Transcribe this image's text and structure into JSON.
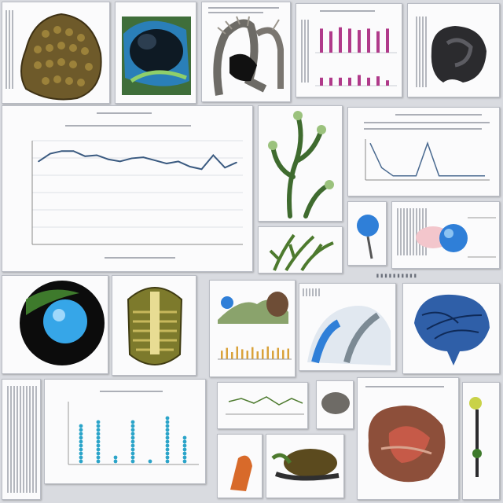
{
  "collage": {
    "background": "#d9dbe0",
    "accent_blue": "#2f7fd8",
    "accent_green": "#4d7a2e",
    "accent_magenta": "#b03a8a"
  },
  "line_chart": {
    "type": "line",
    "x": [
      1,
      2,
      3,
      4,
      5,
      6,
      7,
      8,
      9,
      10,
      11,
      12,
      13,
      14,
      15,
      16,
      17,
      18
    ],
    "values": [
      1.6,
      1.75,
      1.8,
      1.8,
      1.7,
      1.72,
      1.64,
      1.6,
      1.66,
      1.68,
      1.62,
      1.56,
      1.6,
      1.5,
      1.45,
      1.72,
      1.48,
      1.58
    ],
    "ylim": [
      0,
      2
    ],
    "grid": true
  },
  "bar_chart_small": {
    "type": "bar",
    "values": [
      0.9,
      0.3,
      0.8,
      0.3,
      0.95,
      0.3,
      0.9,
      0.3,
      0.85,
      0.4,
      0.9,
      0.3,
      0.8,
      0.35,
      0.9,
      0.2
    ]
  },
  "spike_chart": {
    "type": "line",
    "values": [
      0.9,
      0.3,
      0.1,
      0.1,
      0.1,
      0.9,
      0.1,
      0.1,
      0.1,
      0.1,
      0.1
    ]
  },
  "dot_bar_chart": {
    "type": "bar",
    "values": [
      0.65,
      0.72,
      0.15,
      0.72,
      0.08,
      0.78,
      0.45
    ]
  },
  "heights_chart": {
    "type": "bar",
    "values": [
      0.6,
      0.8,
      0.5,
      0.9,
      0.7,
      0.6,
      0.85,
      0.55,
      0.7,
      0.9,
      0.6,
      0.8,
      0.65,
      0.75
    ]
  }
}
